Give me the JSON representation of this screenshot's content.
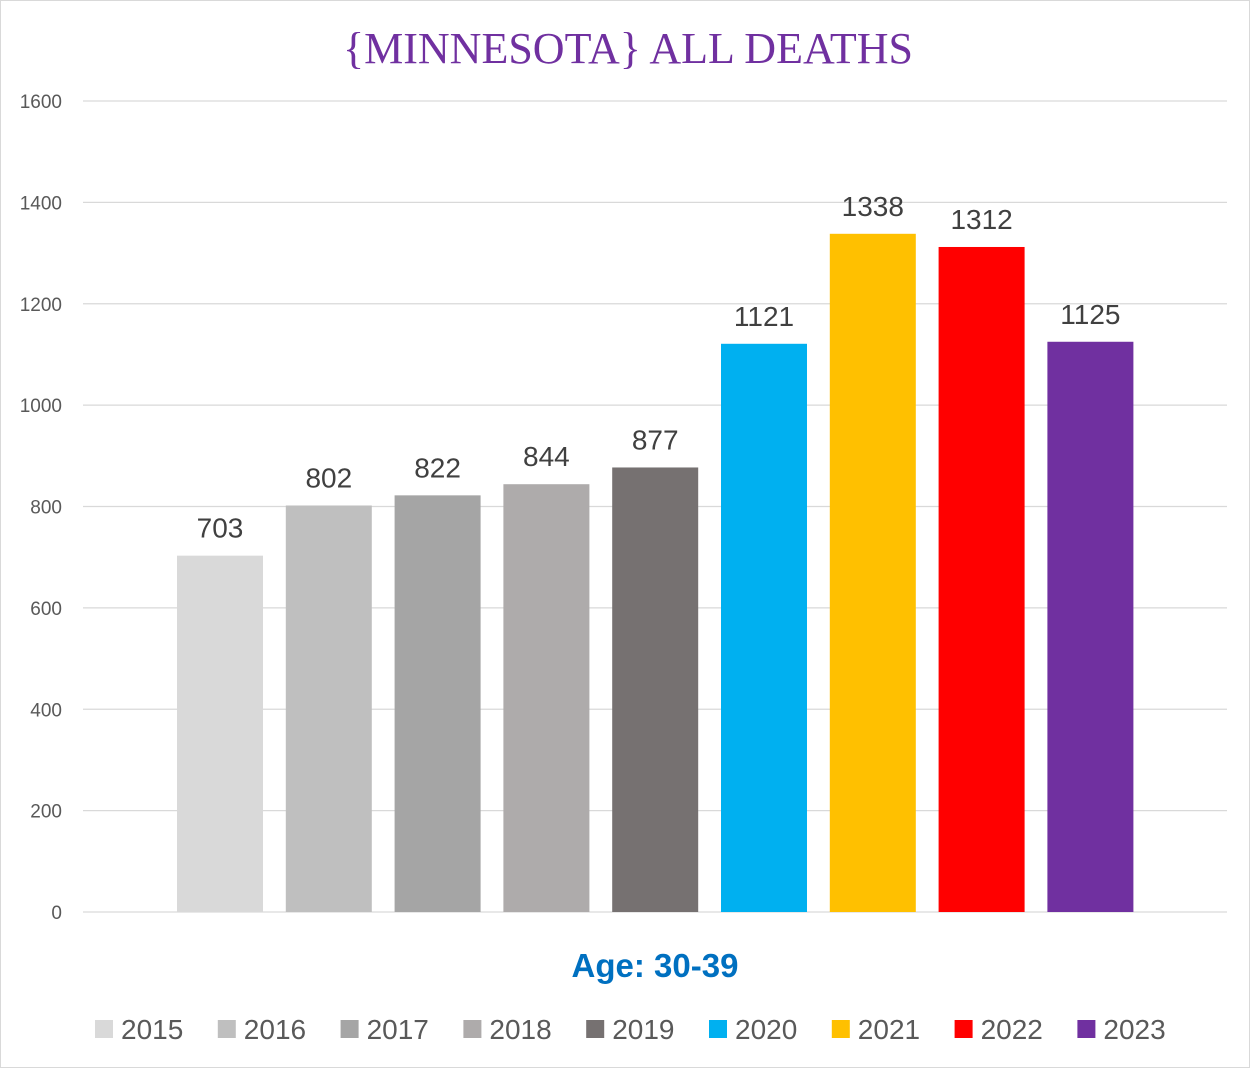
{
  "chart_data": {
    "type": "bar",
    "title": "{MINNESOTA}   ALL DEATHS",
    "xlabel": "Age: 30-39",
    "ylabel": "",
    "ylim": [
      0,
      1600
    ],
    "yticks": [
      0,
      200,
      400,
      600,
      800,
      1000,
      1200,
      1400,
      1600
    ],
    "grid": true,
    "legend_position": "bottom",
    "series": [
      {
        "name": "2015",
        "value": 703,
        "color": "#d9d9d9"
      },
      {
        "name": "2016",
        "value": 802,
        "color": "#bfbfbf"
      },
      {
        "name": "2017",
        "value": 822,
        "color": "#a5a5a5"
      },
      {
        "name": "2018",
        "value": 844,
        "color": "#aeabab"
      },
      {
        "name": "2019",
        "value": 877,
        "color": "#767171"
      },
      {
        "name": "2020",
        "value": 1121,
        "color": "#00b0f0"
      },
      {
        "name": "2021",
        "value": 1338,
        "color": "#ffc000"
      },
      {
        "name": "2022",
        "value": 1312,
        "color": "#ff0000"
      },
      {
        "name": "2023",
        "value": 1125,
        "color": "#7030a0"
      }
    ]
  }
}
